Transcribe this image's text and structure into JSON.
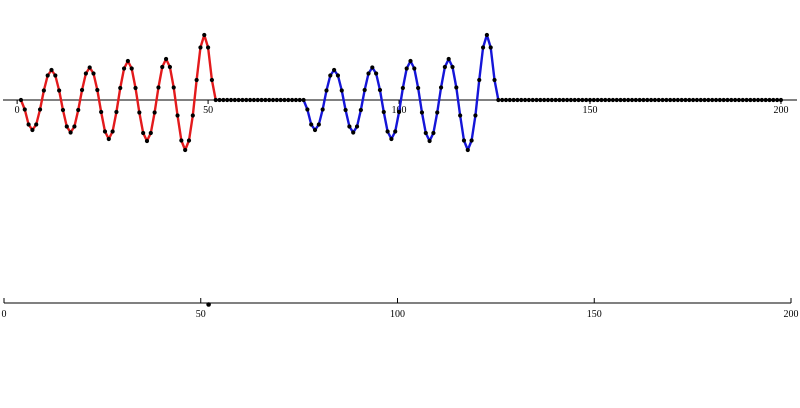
{
  "chart_data": [
    {
      "type": "line",
      "xlim": [
        -3.7,
        204.2
      ],
      "ylim": [
        -1.2,
        1.4
      ],
      "xticks": [
        0,
        50,
        100,
        150,
        200
      ],
      "marker_color": "#000000",
      "series": [
        {
          "color": "#e31a1c",
          "line": true,
          "x": [
            1,
            2,
            3,
            4,
            5,
            6,
            7,
            8,
            9,
            10,
            11,
            12,
            13,
            14,
            15,
            16,
            17,
            18,
            19,
            20,
            21,
            22,
            23,
            24,
            25,
            26,
            27,
            28,
            29,
            30,
            31,
            32,
            33,
            34,
            35,
            36,
            37,
            38,
            39,
            40,
            41,
            42,
            43,
            44,
            45,
            46,
            47,
            48,
            49,
            50,
            51,
            52
          ],
          "values": [
            0,
            -0.19,
            -0.49,
            -0.6,
            -0.49,
            -0.19,
            0.19,
            0.49,
            0.6,
            0.49,
            0.19,
            -0.2,
            -0.53,
            -0.65,
            -0.53,
            -0.2,
            0.2,
            0.53,
            0.65,
            0.53,
            0.2,
            -0.24,
            -0.63,
            -0.78,
            -0.63,
            -0.24,
            0.24,
            0.63,
            0.78,
            0.63,
            0.24,
            -0.25,
            -0.66,
            -0.82,
            -0.66,
            -0.25,
            0.25,
            0.66,
            0.82,
            0.66,
            0.25,
            -0.31,
            -0.81,
            -1,
            -0.81,
            -0.31,
            0.4,
            1.05,
            1.3,
            1.05,
            0.4,
            0
          ]
        },
        {
          "color": "#1515d8",
          "line": true,
          "x": [
            75,
            76,
            77,
            78,
            79,
            80,
            81,
            82,
            83,
            84,
            85,
            86,
            87,
            88,
            89,
            90,
            91,
            92,
            93,
            94,
            95,
            96,
            97,
            98,
            99,
            100,
            101,
            102,
            103,
            104,
            105,
            106,
            107,
            108,
            109,
            110,
            111,
            112,
            113,
            114,
            115,
            116,
            117,
            118,
            119,
            120,
            121,
            122,
            123,
            124,
            125,
            126
          ],
          "values": [
            0,
            -0.19,
            -0.49,
            -0.6,
            -0.49,
            -0.19,
            0.19,
            0.49,
            0.6,
            0.49,
            0.19,
            -0.2,
            -0.53,
            -0.65,
            -0.53,
            -0.2,
            0.2,
            0.53,
            0.65,
            0.53,
            0.2,
            -0.24,
            -0.63,
            -0.78,
            -0.63,
            -0.24,
            0.24,
            0.63,
            0.78,
            0.63,
            0.24,
            -0.25,
            -0.66,
            -0.82,
            -0.66,
            -0.25,
            0.25,
            0.66,
            0.82,
            0.66,
            0.25,
            -0.31,
            -0.81,
            -1,
            -0.81,
            -0.31,
            0.4,
            1.05,
            1.3,
            1.05,
            0.4,
            0
          ]
        },
        {
          "color": "#000000",
          "line": false,
          "x": [
            53,
            54,
            55,
            56,
            57,
            58,
            59,
            60,
            61,
            62,
            63,
            64,
            65,
            66,
            67,
            68,
            69,
            70,
            71,
            72,
            73,
            74,
            127,
            128,
            129,
            130,
            131,
            132,
            133,
            134,
            135,
            136,
            137,
            138,
            139,
            140,
            141,
            142,
            143,
            144,
            145,
            146,
            147,
            148,
            149,
            150,
            151,
            152,
            153,
            154,
            155,
            156,
            157,
            158,
            159,
            160,
            161,
            162,
            163,
            164,
            165,
            166,
            167,
            168,
            169,
            170,
            171,
            172,
            173,
            174,
            175,
            176,
            177,
            178,
            179,
            180,
            181,
            182,
            183,
            184,
            185,
            186,
            187,
            188,
            189,
            190,
            191,
            192,
            193,
            194,
            195,
            196,
            197,
            198,
            199,
            200
          ],
          "values": [
            0,
            0,
            0,
            0,
            0,
            0,
            0,
            0,
            0,
            0,
            0,
            0,
            0,
            0,
            0,
            0,
            0,
            0,
            0,
            0,
            0,
            0,
            0,
            0,
            0,
            0,
            0,
            0,
            0,
            0,
            0,
            0,
            0,
            0,
            0,
            0,
            0,
            0,
            0,
            0,
            0,
            0,
            0,
            0,
            0,
            0,
            0,
            0,
            0,
            0,
            0,
            0,
            0,
            0,
            0,
            0,
            0,
            0,
            0,
            0,
            0,
            0,
            0,
            0,
            0,
            0,
            0,
            0,
            0,
            0,
            0,
            0,
            0,
            0,
            0,
            0,
            0,
            0,
            0,
            0,
            0,
            0,
            0,
            0,
            0,
            0,
            0,
            0,
            0,
            0,
            0,
            0,
            0,
            0,
            0,
            0
          ]
        }
      ]
    },
    {
      "type": "numberline",
      "xlim": [
        0,
        200
      ],
      "xticks": [
        0,
        50,
        100,
        150,
        200
      ],
      "marker_color": "#000000",
      "x": [
        52
      ]
    }
  ]
}
